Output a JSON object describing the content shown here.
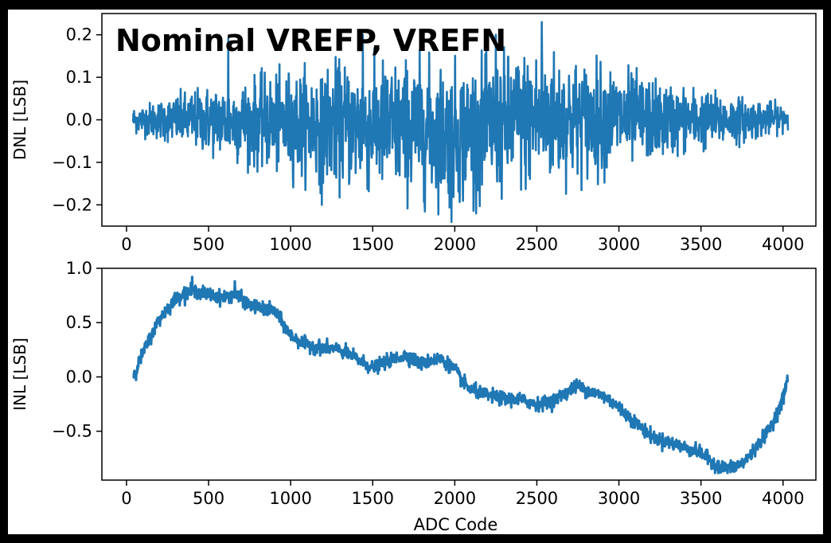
{
  "title": "Nominal VREFP, VREFN",
  "chart_data": [
    {
      "type": "line",
      "ylabel": "DNL [LSB]",
      "xlabel": "",
      "xlim": [
        -150,
        4200
      ],
      "ylim": [
        -0.25,
        0.25
      ],
      "xticks": [
        0,
        500,
        1000,
        1500,
        2000,
        2500,
        3000,
        3500,
        4000
      ],
      "yticks": [
        -0.2,
        -0.1,
        0.0,
        0.1,
        0.2
      ],
      "xtick_labels": [
        "0",
        "500",
        "1000",
        "1500",
        "2000",
        "2500",
        "3000",
        "3500",
        "4000"
      ],
      "ytick_labels": [
        "−0.2",
        "−0.1",
        "0.0",
        "0.1",
        "0.2"
      ],
      "grid": false,
      "color": "#1f77b4",
      "series": [
        {
          "x_start": 40,
          "x_end": 4030,
          "envelope_codes": [
            40,
            250,
            500,
            750,
            1000,
            1250,
            1500,
            1750,
            2000,
            2250,
            2500,
            2750,
            3000,
            3250,
            3500,
            3750,
            4030
          ],
          "envelope_upper": [
            0.035,
            0.06,
            0.09,
            0.11,
            0.13,
            0.15,
            0.16,
            0.16,
            0.15,
            0.17,
            0.19,
            0.16,
            0.14,
            0.1,
            0.08,
            0.06,
            0.04
          ],
          "envelope_lower": [
            -0.035,
            -0.06,
            -0.09,
            -0.12,
            -0.15,
            -0.17,
            -0.19,
            -0.2,
            -0.22,
            -0.2,
            -0.18,
            -0.16,
            -0.13,
            -0.1,
            -0.08,
            -0.06,
            -0.03
          ],
          "max": 0.23,
          "min": -0.24
        }
      ]
    },
    {
      "type": "line",
      "ylabel": "INL [LSB]",
      "xlabel": "ADC Code",
      "xlim": [
        -150,
        4200
      ],
      "ylim": [
        -0.95,
        1.0
      ],
      "xticks": [
        0,
        500,
        1000,
        1500,
        2000,
        2500,
        3000,
        3500,
        4000
      ],
      "yticks": [
        -0.5,
        0.0,
        0.5,
        1.0
      ],
      "xtick_labels": [
        "0",
        "500",
        "1000",
        "1500",
        "2000",
        "2500",
        "3000",
        "3500",
        "4000"
      ],
      "ytick_labels": [
        "−0.5",
        "0.0",
        "0.5",
        "1.0"
      ],
      "grid": false,
      "color": "#1f77b4",
      "series": [
        {
          "x": [
            40,
            100,
            150,
            200,
            250,
            300,
            350,
            400,
            450,
            500,
            550,
            600,
            650,
            700,
            750,
            800,
            850,
            900,
            950,
            1000,
            1100,
            1200,
            1300,
            1400,
            1500,
            1600,
            1700,
            1800,
            1850,
            1900,
            1950,
            2000,
            2050,
            2100,
            2200,
            2300,
            2400,
            2500,
            2550,
            2600,
            2650,
            2700,
            2750,
            2800,
            2850,
            2900,
            2950,
            3000,
            3100,
            3200,
            3300,
            3400,
            3500,
            3550,
            3600,
            3650,
            3700,
            3750,
            3800,
            3850,
            3900,
            3950,
            4000,
            4030
          ],
          "y": [
            0.0,
            0.22,
            0.38,
            0.53,
            0.63,
            0.72,
            0.77,
            0.79,
            0.78,
            0.76,
            0.74,
            0.73,
            0.76,
            0.72,
            0.66,
            0.64,
            0.62,
            0.61,
            0.5,
            0.38,
            0.29,
            0.27,
            0.25,
            0.17,
            0.08,
            0.15,
            0.2,
            0.12,
            0.15,
            0.17,
            0.13,
            0.07,
            -0.05,
            -0.12,
            -0.17,
            -0.2,
            -0.21,
            -0.25,
            -0.24,
            -0.22,
            -0.17,
            -0.12,
            -0.08,
            -0.12,
            -0.15,
            -0.17,
            -0.22,
            -0.28,
            -0.42,
            -0.55,
            -0.6,
            -0.65,
            -0.7,
            -0.76,
            -0.82,
            -0.84,
            -0.83,
            -0.8,
            -0.72,
            -0.62,
            -0.52,
            -0.38,
            -0.2,
            0.0
          ],
          "max": 0.92,
          "min": -0.88
        }
      ]
    }
  ]
}
